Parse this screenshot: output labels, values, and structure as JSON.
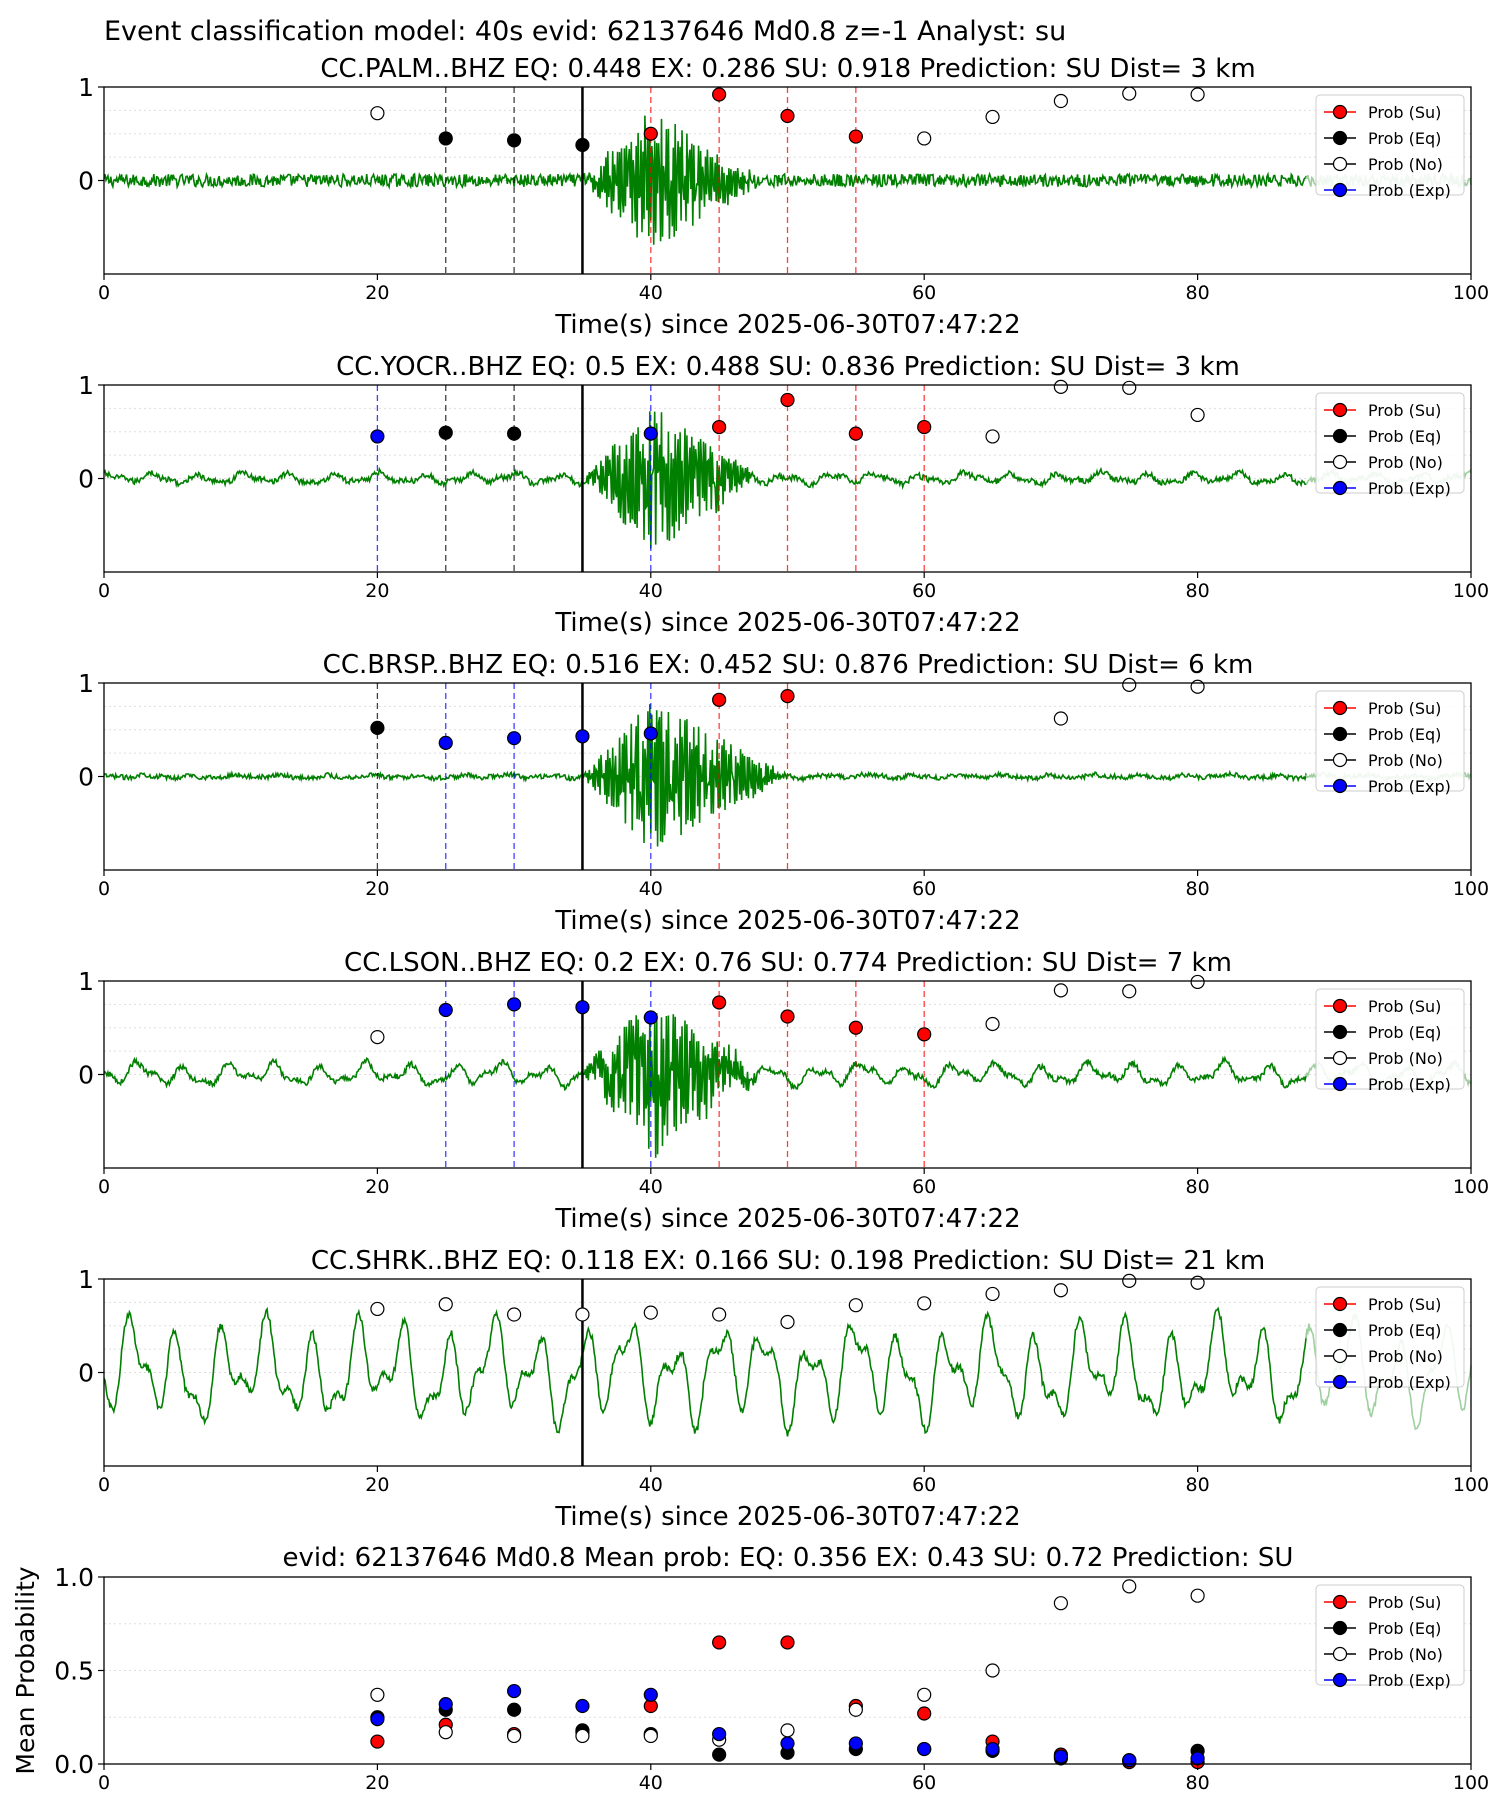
{
  "suptitle": "Event classification model: 40s evid: 62137646 Md0.8 z=-1 Analyst: su",
  "legend_labels": [
    "Prob (Su)",
    "Prob (Eq)",
    "Prob (No)",
    "Prob (Exp)"
  ],
  "colors": {
    "su": "#ff0000",
    "eq": "#000000",
    "no": "#ffffff",
    "exp": "#0000ff",
    "trace": "#007f00",
    "trace_faded": "#9fcf9f",
    "grid": "#dddddd"
  },
  "chart_data": [
    {
      "type": "line",
      "title": "CC.PALM..BHZ    EQ: 0.448   EX: 0.286   SU: 0.918    Prediction: SU     Dist= 3 km",
      "xlabel": "Time(s) since 2025-06-30T07:47:22",
      "ylabel": "",
      "xlim": [
        0,
        100
      ],
      "ylim": [
        -1,
        1
      ],
      "xticks": [
        "0",
        "20",
        "40",
        "60",
        "80",
        "100"
      ],
      "yticks": [
        "0",
        "1"
      ],
      "trace": {
        "amp_noise": 0.07,
        "event_start": 35,
        "event_peak": 40,
        "event_end": 48,
        "event_amp": 0.7,
        "lf_amp": 0.0
      },
      "onset": 35,
      "vlines": [
        {
          "x": 25,
          "cls": "eq"
        },
        {
          "x": 30,
          "cls": "eq"
        },
        {
          "x": 40,
          "cls": "su"
        },
        {
          "x": 45,
          "cls": "su"
        },
        {
          "x": 50,
          "cls": "su"
        },
        {
          "x": 55,
          "cls": "su"
        }
      ],
      "points": [
        {
          "x": 20,
          "y": 0.72,
          "cls": "no"
        },
        {
          "x": 25,
          "y": 0.45,
          "cls": "eq"
        },
        {
          "x": 30,
          "y": 0.43,
          "cls": "eq"
        },
        {
          "x": 35,
          "y": 0.38,
          "cls": "eq"
        },
        {
          "x": 40,
          "y": 0.5,
          "cls": "su"
        },
        {
          "x": 45,
          "y": 0.92,
          "cls": "su"
        },
        {
          "x": 50,
          "y": 0.69,
          "cls": "su"
        },
        {
          "x": 55,
          "y": 0.47,
          "cls": "su"
        },
        {
          "x": 60,
          "y": 0.45,
          "cls": "no"
        },
        {
          "x": 65,
          "y": 0.68,
          "cls": "no"
        },
        {
          "x": 70,
          "y": 0.85,
          "cls": "no"
        },
        {
          "x": 75,
          "y": 0.93,
          "cls": "no"
        },
        {
          "x": 80,
          "y": 0.92,
          "cls": "no"
        }
      ]
    },
    {
      "type": "line",
      "title": "CC.YOCR..BHZ    EQ: 0.5   EX: 0.488   SU: 0.836    Prediction: SU     Dist= 3 km",
      "xlabel": "Time(s) since 2025-06-30T07:47:22",
      "ylabel": "",
      "xlim": [
        0,
        100
      ],
      "ylim": [
        -1,
        1
      ],
      "xticks": [
        "0",
        "20",
        "40",
        "60",
        "80",
        "100"
      ],
      "yticks": [
        "0",
        "1"
      ],
      "trace": {
        "amp_noise": 0.03,
        "event_start": 35,
        "event_peak": 40,
        "event_end": 48,
        "event_amp": 0.75,
        "lf_amp": 0.06
      },
      "onset": 35,
      "vlines": [
        {
          "x": 20,
          "cls": "exp"
        },
        {
          "x": 25,
          "cls": "eq"
        },
        {
          "x": 30,
          "cls": "eq"
        },
        {
          "x": 40,
          "cls": "exp"
        },
        {
          "x": 45,
          "cls": "su"
        },
        {
          "x": 50,
          "cls": "su"
        },
        {
          "x": 55,
          "cls": "su"
        },
        {
          "x": 60,
          "cls": "su"
        }
      ],
      "points": [
        {
          "x": 20,
          "y": 0.45,
          "cls": "exp"
        },
        {
          "x": 25,
          "y": 0.49,
          "cls": "eq"
        },
        {
          "x": 30,
          "y": 0.48,
          "cls": "eq"
        },
        {
          "x": 40,
          "y": 0.48,
          "cls": "exp"
        },
        {
          "x": 45,
          "y": 0.55,
          "cls": "su"
        },
        {
          "x": 50,
          "y": 0.84,
          "cls": "su"
        },
        {
          "x": 55,
          "y": 0.48,
          "cls": "su"
        },
        {
          "x": 60,
          "y": 0.55,
          "cls": "su"
        },
        {
          "x": 65,
          "y": 0.45,
          "cls": "no"
        },
        {
          "x": 70,
          "y": 0.98,
          "cls": "no"
        },
        {
          "x": 75,
          "y": 0.97,
          "cls": "no"
        },
        {
          "x": 80,
          "y": 0.68,
          "cls": "no"
        }
      ]
    },
    {
      "type": "line",
      "title": "CC.BRSP..BHZ    EQ: 0.516   EX: 0.452   SU: 0.876    Prediction: SU     Dist= 6 km",
      "xlabel": "Time(s) since 2025-06-30T07:47:22",
      "ylabel": "",
      "xlim": [
        0,
        100
      ],
      "ylim": [
        -1,
        1
      ],
      "xticks": [
        "0",
        "20",
        "40",
        "60",
        "80",
        "100"
      ],
      "yticks": [
        "0",
        "1"
      ],
      "trace": {
        "amp_noise": 0.025,
        "event_start": 35,
        "event_peak": 40,
        "event_end": 50,
        "event_amp": 0.8,
        "lf_amp": 0.02
      },
      "onset": 35,
      "vlines": [
        {
          "x": 20,
          "cls": "eq"
        },
        {
          "x": 25,
          "cls": "exp"
        },
        {
          "x": 30,
          "cls": "exp"
        },
        {
          "x": 40,
          "cls": "exp"
        },
        {
          "x": 45,
          "cls": "su"
        },
        {
          "x": 50,
          "cls": "su"
        }
      ],
      "points": [
        {
          "x": 20,
          "y": 0.52,
          "cls": "eq"
        },
        {
          "x": 25,
          "y": 0.36,
          "cls": "exp"
        },
        {
          "x": 30,
          "y": 0.41,
          "cls": "exp"
        },
        {
          "x": 35,
          "y": 0.43,
          "cls": "exp"
        },
        {
          "x": 40,
          "y": 0.46,
          "cls": "exp"
        },
        {
          "x": 45,
          "y": 0.82,
          "cls": "su"
        },
        {
          "x": 50,
          "y": 0.86,
          "cls": "su"
        },
        {
          "x": 70,
          "y": 0.62,
          "cls": "no"
        },
        {
          "x": 75,
          "y": 0.98,
          "cls": "no"
        },
        {
          "x": 80,
          "y": 0.96,
          "cls": "no"
        }
      ]
    },
    {
      "type": "line",
      "title": "CC.LSON..BHZ    EQ: 0.2   EX: 0.76   SU: 0.774    Prediction: SU     Dist= 7 km",
      "xlabel": "Time(s) since 2025-06-30T07:47:22",
      "ylabel": "",
      "xlim": [
        0,
        100
      ],
      "ylim": [
        -1,
        1
      ],
      "xticks": [
        "0",
        "20",
        "40",
        "60",
        "80",
        "100"
      ],
      "yticks": [
        "0",
        "1"
      ],
      "trace": {
        "amp_noise": 0.03,
        "event_start": 35,
        "event_peak": 40,
        "event_end": 48,
        "event_amp": 0.8,
        "lf_amp": 0.12
      },
      "onset": 35,
      "vlines": [
        {
          "x": 25,
          "cls": "exp"
        },
        {
          "x": 30,
          "cls": "exp"
        },
        {
          "x": 40,
          "cls": "exp"
        },
        {
          "x": 45,
          "cls": "su"
        },
        {
          "x": 50,
          "cls": "su"
        },
        {
          "x": 55,
          "cls": "su"
        },
        {
          "x": 60,
          "cls": "su"
        }
      ],
      "points": [
        {
          "x": 20,
          "y": 0.4,
          "cls": "no"
        },
        {
          "x": 25,
          "y": 0.69,
          "cls": "exp"
        },
        {
          "x": 30,
          "y": 0.75,
          "cls": "exp"
        },
        {
          "x": 35,
          "y": 0.72,
          "cls": "exp"
        },
        {
          "x": 40,
          "y": 0.61,
          "cls": "exp"
        },
        {
          "x": 45,
          "y": 0.77,
          "cls": "su"
        },
        {
          "x": 50,
          "y": 0.62,
          "cls": "su"
        },
        {
          "x": 55,
          "y": 0.5,
          "cls": "su"
        },
        {
          "x": 60,
          "y": 0.43,
          "cls": "su"
        },
        {
          "x": 65,
          "y": 0.54,
          "cls": "no"
        },
        {
          "x": 70,
          "y": 0.9,
          "cls": "no"
        },
        {
          "x": 75,
          "y": 0.89,
          "cls": "no"
        },
        {
          "x": 80,
          "y": 0.99,
          "cls": "no"
        }
      ]
    },
    {
      "type": "line",
      "title": "CC.SHRK..BHZ    EQ: 0.118   EX: 0.166   SU: 0.198    Prediction: SU     Dist= 21 km",
      "xlabel": "Time(s) since 2025-06-30T07:47:22",
      "ylabel": "",
      "xlim": [
        0,
        100
      ],
      "ylim": [
        -1,
        1
      ],
      "xticks": [
        "0",
        "20",
        "40",
        "60",
        "80",
        "100"
      ],
      "yticks": [
        "0",
        "1"
      ],
      "trace": {
        "amp_noise": 0.04,
        "event_start": 0,
        "event_peak": 0,
        "event_end": 0,
        "event_amp": 0.0,
        "lf_amp": 0.55
      },
      "onset": 35,
      "vlines": [],
      "points": [
        {
          "x": 20,
          "y": 0.68,
          "cls": "no"
        },
        {
          "x": 25,
          "y": 0.73,
          "cls": "no"
        },
        {
          "x": 30,
          "y": 0.62,
          "cls": "no"
        },
        {
          "x": 35,
          "y": 0.62,
          "cls": "no"
        },
        {
          "x": 40,
          "y": 0.64,
          "cls": "no"
        },
        {
          "x": 45,
          "y": 0.62,
          "cls": "no"
        },
        {
          "x": 50,
          "y": 0.54,
          "cls": "no"
        },
        {
          "x": 55,
          "y": 0.72,
          "cls": "no"
        },
        {
          "x": 60,
          "y": 0.74,
          "cls": "no"
        },
        {
          "x": 65,
          "y": 0.84,
          "cls": "no"
        },
        {
          "x": 70,
          "y": 0.88,
          "cls": "no"
        },
        {
          "x": 75,
          "y": 0.98,
          "cls": "no"
        },
        {
          "x": 80,
          "y": 0.96,
          "cls": "no"
        }
      ]
    },
    {
      "type": "scatter",
      "title": "evid: 62137646  Md0.8   Mean prob:    EQ: 0.356  EX: 0.43  SU: 0.72   Prediction: SU",
      "xlabel": "",
      "ylabel": "Mean Probability",
      "xlim": [
        0,
        100
      ],
      "ylim": [
        0,
        1
      ],
      "xticks": [
        "0",
        "20",
        "40",
        "60",
        "80",
        "100"
      ],
      "yticks": [
        "0.0",
        "0.5",
        "1.0"
      ],
      "series": [
        {
          "name": "Prob (Su)",
          "cls": "su",
          "x": [
            20,
            25,
            30,
            35,
            40,
            45,
            50,
            55,
            60,
            65,
            70,
            75,
            80
          ],
          "y": [
            0.12,
            0.21,
            0.16,
            0.17,
            0.31,
            0.65,
            0.65,
            0.31,
            0.27,
            0.12,
            0.05,
            0.01,
            0.01
          ]
        },
        {
          "name": "Prob (Eq)",
          "cls": "eq",
          "x": [
            20,
            25,
            30,
            35,
            40,
            45,
            50,
            55,
            60,
            65,
            70,
            75,
            80
          ],
          "y": [
            0.25,
            0.29,
            0.29,
            0.18,
            0.16,
            0.05,
            0.06,
            0.08,
            0.08,
            0.07,
            0.03,
            0.02,
            0.07
          ]
        },
        {
          "name": "Prob (No)",
          "cls": "no",
          "x": [
            20,
            25,
            30,
            35,
            40,
            45,
            50,
            55,
            60,
            65,
            70,
            75,
            80
          ],
          "y": [
            0.37,
            0.17,
            0.15,
            0.15,
            0.15,
            0.13,
            0.18,
            0.29,
            0.37,
            0.5,
            0.86,
            0.95,
            0.9
          ]
        },
        {
          "name": "Prob (Exp)",
          "cls": "exp",
          "x": [
            20,
            25,
            30,
            35,
            40,
            45,
            50,
            55,
            60,
            65,
            70,
            75,
            80
          ],
          "y": [
            0.24,
            0.32,
            0.39,
            0.31,
            0.37,
            0.16,
            0.11,
            0.11,
            0.08,
            0.08,
            0.04,
            0.02,
            0.03
          ]
        }
      ]
    }
  ]
}
